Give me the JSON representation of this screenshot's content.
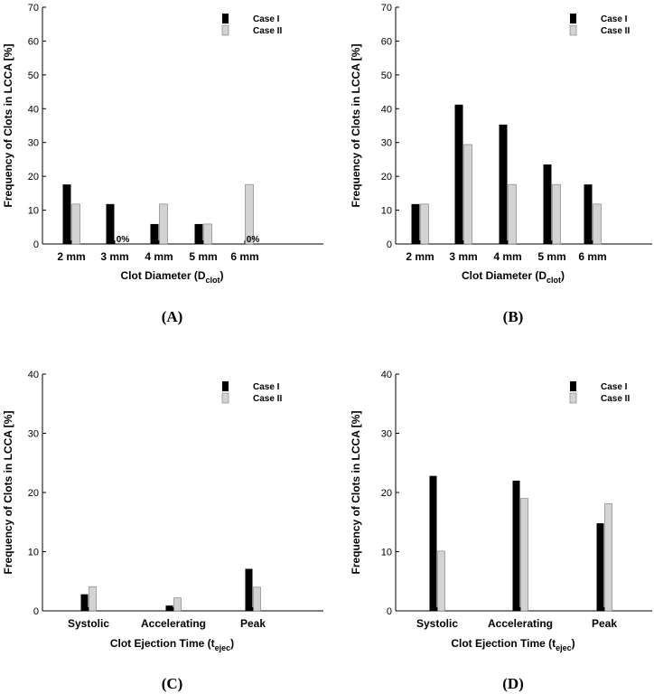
{
  "chart_data": [
    {
      "panel": "(A)",
      "type": "bar",
      "categories": [
        "2 mm",
        "3 mm",
        "4 mm",
        "5 mm",
        "6 mm"
      ],
      "series": [
        {
          "name": "Case I",
          "values": [
            17.6,
            11.8,
            5.9,
            5.9,
            0
          ]
        },
        {
          "name": "Case II",
          "values": [
            11.8,
            0,
            11.8,
            5.9,
            17.6
          ]
        }
      ],
      "ylim": [
        0,
        70
      ],
      "yticks": [
        0,
        10,
        20,
        30,
        40,
        50,
        60,
        70
      ],
      "ylabel": "Frequency of Clots in LCCA [%]",
      "xlabel": "Clot Diameter (D",
      "xlabel_sub": "clot",
      "xlabel_end": ")",
      "annotations": [
        {
          "text": "0%",
          "category": "3 mm"
        },
        {
          "text": "0%",
          "category": "6 mm"
        }
      ]
    },
    {
      "panel": "(B)",
      "type": "bar",
      "categories": [
        "2 mm",
        "3 mm",
        "4 mm",
        "5 mm",
        "6 mm"
      ],
      "series": [
        {
          "name": "Case I",
          "values": [
            11.8,
            41.2,
            35.3,
            23.5,
            17.6
          ]
        },
        {
          "name": "Case II",
          "values": [
            11.8,
            29.4,
            17.6,
            17.6,
            11.8
          ]
        }
      ],
      "ylim": [
        0,
        70
      ],
      "yticks": [
        0,
        10,
        20,
        30,
        40,
        50,
        60,
        70
      ],
      "ylabel": "Frequency of Clots in LCCA [%]",
      "xlabel": "Clot Diameter (D",
      "xlabel_sub": "clot",
      "xlabel_end": ")",
      "annotations": []
    },
    {
      "panel": "(C)",
      "type": "bar",
      "categories": [
        "Systolic",
        "Accelerating",
        "Peak"
      ],
      "series": [
        {
          "name": "Case I",
          "values": [
            2.8,
            0.9,
            7.1
          ]
        },
        {
          "name": "Case II",
          "values": [
            4.1,
            2.2,
            4.0
          ]
        }
      ],
      "ylim": [
        0,
        40
      ],
      "yticks": [
        0,
        10,
        20,
        30,
        40
      ],
      "ylabel": "Frequency of Clots in LCCA [%]",
      "xlabel": "Clot Ejection Time (t",
      "xlabel_sub": "ejec",
      "xlabel_end": ")",
      "annotations": []
    },
    {
      "panel": "(D)",
      "type": "bar",
      "categories": [
        "Systolic",
        "Accelerating",
        "Peak"
      ],
      "series": [
        {
          "name": "Case I",
          "values": [
            22.8,
            22.0,
            14.8
          ]
        },
        {
          "name": "Case II",
          "values": [
            10.1,
            19.0,
            18.1
          ]
        }
      ],
      "ylim": [
        0,
        40
      ],
      "yticks": [
        0,
        10,
        20,
        30,
        40
      ],
      "ylabel": "Frequency of Clots in LCCA [%]",
      "xlabel": "Clot Ejection Time (t",
      "xlabel_sub": "ejec",
      "xlabel_end": ")",
      "annotations": []
    }
  ],
  "colors": {
    "case1": "#000000",
    "case2": "#d3d3d3"
  }
}
